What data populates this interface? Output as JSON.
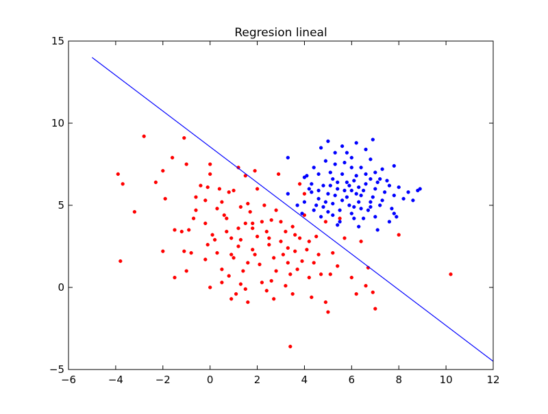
{
  "chart_data": {
    "type": "scatter",
    "title": "Regresion lineal",
    "xlabel": "",
    "ylabel": "",
    "xlim": [
      -6,
      12
    ],
    "ylim": [
      -5,
      15
    ],
    "xticks": [
      -6,
      -4,
      -2,
      0,
      2,
      4,
      6,
      8,
      10,
      12
    ],
    "yticks": [
      -5,
      0,
      5,
      10,
      15
    ],
    "xtick_labels": [
      "−6",
      "−4",
      "−2",
      "0",
      "2",
      "4",
      "6",
      "8",
      "10",
      "12"
    ],
    "ytick_labels": [
      "−5",
      "0",
      "5",
      "10",
      "15"
    ],
    "grid": false,
    "legend": "none",
    "colors": {
      "red_class": "#ff0000",
      "blue_class": "#0000ff",
      "line": "#0000ff"
    },
    "series": [
      {
        "color": "#ff0000",
        "points": [
          [
            -2.8,
            9.2
          ],
          [
            -1.1,
            9.1
          ],
          [
            -1.0,
            7.5
          ],
          [
            -1.6,
            7.9
          ],
          [
            -2.0,
            7.1
          ],
          [
            -1.9,
            5.4
          ],
          [
            -2.3,
            6.4
          ],
          [
            -3.9,
            6.9
          ],
          [
            -3.7,
            6.3
          ],
          [
            -3.2,
            4.6
          ],
          [
            -3.8,
            1.6
          ],
          [
            -2.0,
            2.2
          ],
          [
            -1.5,
            0.6
          ],
          [
            -1.5,
            3.5
          ],
          [
            -1.2,
            3.4
          ],
          [
            -1.1,
            2.2
          ],
          [
            -1.0,
            1.0
          ],
          [
            -0.9,
            3.5
          ],
          [
            -0.8,
            2.1
          ],
          [
            -0.6,
            4.7
          ],
          [
            -0.4,
            6.2
          ],
          [
            -0.6,
            5.5
          ],
          [
            -0.1,
            6.1
          ],
          [
            -0.2,
            5.3
          ],
          [
            0.0,
            6.9
          ],
          [
            -0.2,
            3.9
          ],
          [
            0.0,
            7.5
          ],
          [
            0.1,
            3.2
          ],
          [
            -0.2,
            1.7
          ],
          [
            -0.1,
            2.6
          ],
          [
            0.3,
            2.1
          ],
          [
            0.5,
            1.1
          ],
          [
            0.2,
            2.9
          ],
          [
            0.6,
            4.4
          ],
          [
            0.7,
            3.4
          ],
          [
            0.8,
            5.8
          ],
          [
            0.4,
            6.0
          ],
          [
            0.9,
            3.0
          ],
          [
            0.9,
            2.0
          ],
          [
            0.5,
            0.3
          ],
          [
            0.0,
            0.0
          ],
          [
            0.8,
            0.7
          ],
          [
            1.0,
            1.8
          ],
          [
            1.2,
            2.5
          ],
          [
            1.2,
            3.6
          ],
          [
            1.3,
            4.9
          ],
          [
            1.2,
            7.3
          ],
          [
            1.5,
            6.8
          ],
          [
            1.6,
            5.1
          ],
          [
            1.7,
            4.6
          ],
          [
            1.8,
            3.9
          ],
          [
            1.6,
            1.5
          ],
          [
            1.4,
            1.0
          ],
          [
            1.3,
            0.2
          ],
          [
            1.1,
            -0.4
          ],
          [
            0.9,
            -0.7
          ],
          [
            1.5,
            -0.1
          ],
          [
            1.8,
            2.3
          ],
          [
            1.9,
            2.0
          ],
          [
            2.1,
            1.4
          ],
          [
            2.0,
            3.1
          ],
          [
            2.2,
            4.0
          ],
          [
            2.3,
            5.0
          ],
          [
            2.0,
            6.0
          ],
          [
            1.9,
            7.1
          ],
          [
            2.4,
            3.4
          ],
          [
            2.6,
            4.1
          ],
          [
            2.5,
            2.6
          ],
          [
            2.7,
            1.8
          ],
          [
            2.8,
            1.0
          ],
          [
            2.6,
            0.4
          ],
          [
            2.7,
            -0.7
          ],
          [
            2.4,
            -0.2
          ],
          [
            3.0,
            2.8
          ],
          [
            3.0,
            4.0
          ],
          [
            3.2,
            3.4
          ],
          [
            3.1,
            2.0
          ],
          [
            3.3,
            1.5
          ],
          [
            3.4,
            0.8
          ],
          [
            3.2,
            0.1
          ],
          [
            3.5,
            -0.4
          ],
          [
            3.4,
            -3.6
          ],
          [
            3.6,
            2.2
          ],
          [
            3.7,
            1.1
          ],
          [
            3.8,
            3.0
          ],
          [
            3.9,
            1.6
          ],
          [
            4.0,
            4.4
          ],
          [
            4.1,
            2.3
          ],
          [
            4.2,
            0.6
          ],
          [
            4.3,
            -0.6
          ],
          [
            4.4,
            1.5
          ],
          [
            4.5,
            3.1
          ],
          [
            4.6,
            2.0
          ],
          [
            4.7,
            0.8
          ],
          [
            4.9,
            -0.9
          ],
          [
            5.0,
            -1.5
          ],
          [
            5.1,
            0.8
          ],
          [
            5.2,
            2.1
          ],
          [
            5.4,
            1.3
          ],
          [
            5.5,
            4.2
          ],
          [
            5.7,
            3.0
          ],
          [
            6.0,
            0.6
          ],
          [
            6.2,
            -0.4
          ],
          [
            6.4,
            2.8
          ],
          [
            6.6,
            0.1
          ],
          [
            6.7,
            1.2
          ],
          [
            6.9,
            -0.3
          ],
          [
            7.0,
            -1.3
          ],
          [
            8.0,
            3.2
          ],
          [
            10.2,
            0.8
          ],
          [
            3.8,
            6.3
          ],
          [
            2.9,
            6.9
          ],
          [
            1.0,
            5.9
          ],
          [
            0.5,
            5.2
          ],
          [
            -0.7,
            4.2
          ],
          [
            0.3,
            4.8
          ],
          [
            2.8,
            4.7
          ],
          [
            1.5,
            3.9
          ],
          [
            3.5,
            3.7
          ],
          [
            4.0,
            5.7
          ],
          [
            0.7,
            4.2
          ],
          [
            1.8,
            3.6
          ],
          [
            2.5,
            3.0
          ],
          [
            1.3,
            2.9
          ],
          [
            3.6,
            3.2
          ],
          [
            4.9,
            4.0
          ],
          [
            4.2,
            2.8
          ],
          [
            3.3,
            2.4
          ],
          [
            2.2,
            0.3
          ],
          [
            1.6,
            -0.9
          ]
        ]
      },
      {
        "color": "#0000ff",
        "points": [
          [
            5.0,
            8.9
          ],
          [
            4.7,
            8.5
          ],
          [
            5.3,
            8.2
          ],
          [
            5.6,
            8.6
          ],
          [
            6.2,
            8.8
          ],
          [
            6.9,
            9.0
          ],
          [
            6.0,
            7.9
          ],
          [
            5.7,
            7.6
          ],
          [
            6.4,
            7.3
          ],
          [
            6.8,
            7.8
          ],
          [
            7.3,
            7.2
          ],
          [
            7.8,
            7.4
          ],
          [
            4.4,
            7.3
          ],
          [
            4.0,
            6.7
          ],
          [
            4.3,
            6.3
          ],
          [
            4.1,
            6.8
          ],
          [
            3.3,
            7.9
          ],
          [
            3.3,
            5.7
          ],
          [
            3.7,
            5.0
          ],
          [
            4.0,
            5.2
          ],
          [
            4.3,
            5.8
          ],
          [
            4.6,
            5.4
          ],
          [
            4.8,
            6.2
          ],
          [
            5.0,
            5.7
          ],
          [
            5.2,
            6.6
          ],
          [
            5.4,
            6.0
          ],
          [
            5.6,
            5.3
          ],
          [
            5.8,
            6.4
          ],
          [
            6.0,
            5.9
          ],
          [
            6.2,
            6.8
          ],
          [
            6.4,
            5.6
          ],
          [
            6.6,
            6.3
          ],
          [
            6.8,
            5.2
          ],
          [
            7.0,
            6.0
          ],
          [
            7.2,
            6.6
          ],
          [
            7.4,
            5.8
          ],
          [
            7.6,
            6.2
          ],
          [
            7.8,
            5.6
          ],
          [
            8.0,
            6.1
          ],
          [
            8.2,
            5.4
          ],
          [
            8.8,
            5.9
          ],
          [
            8.9,
            6.0
          ],
          [
            7.7,
            4.8
          ],
          [
            7.8,
            4.5
          ],
          [
            7.6,
            4.0
          ],
          [
            7.0,
            4.3
          ],
          [
            6.5,
            4.2
          ],
          [
            6.0,
            4.5
          ],
          [
            5.5,
            4.0
          ],
          [
            5.0,
            4.6
          ],
          [
            4.7,
            4.3
          ],
          [
            4.5,
            5.0
          ],
          [
            5.2,
            5.1
          ],
          [
            5.9,
            5.0
          ],
          [
            6.3,
            5.2
          ],
          [
            6.7,
            4.7
          ],
          [
            7.2,
            5.0
          ],
          [
            5.5,
            4.7
          ],
          [
            6.1,
            4.9
          ],
          [
            5.3,
            5.6
          ],
          [
            5.8,
            5.5
          ],
          [
            6.3,
            6.1
          ],
          [
            6.1,
            6.5
          ],
          [
            5.6,
            6.9
          ],
          [
            5.1,
            7.0
          ],
          [
            4.6,
            6.9
          ],
          [
            6.6,
            6.9
          ],
          [
            7.1,
            6.4
          ],
          [
            6.8,
            6.6
          ],
          [
            7.5,
            6.5
          ],
          [
            5.9,
            6.2
          ],
          [
            5.4,
            6.4
          ],
          [
            6.5,
            5.9
          ],
          [
            4.9,
            5.2
          ],
          [
            6.9,
            5.5
          ],
          [
            7.3,
            5.3
          ],
          [
            5.7,
            5.9
          ],
          [
            6.2,
            5.7
          ],
          [
            4.8,
            4.9
          ],
          [
            5.1,
            6.2
          ],
          [
            6.0,
            7.3
          ],
          [
            5.3,
            7.5
          ],
          [
            4.9,
            7.7
          ],
          [
            7.0,
            7.0
          ],
          [
            4.2,
            6.0
          ],
          [
            3.9,
            4.5
          ],
          [
            4.4,
            4.7
          ],
          [
            6.4,
            4.8
          ],
          [
            6.8,
            4.9
          ],
          [
            7.9,
            4.3
          ],
          [
            5.8,
            8.2
          ],
          [
            6.6,
            8.4
          ],
          [
            5.4,
            3.8
          ],
          [
            6.3,
            3.7
          ],
          [
            7.1,
            3.5
          ],
          [
            8.4,
            5.8
          ],
          [
            8.6,
            5.3
          ],
          [
            4.6,
            5.9
          ],
          [
            5.2,
            4.4
          ],
          [
            6.1,
            4.2
          ]
        ]
      }
    ],
    "regression_line": {
      "color": "#0000ff",
      "x": [
        -5,
        12
      ],
      "y": [
        14,
        -4.5
      ]
    }
  }
}
